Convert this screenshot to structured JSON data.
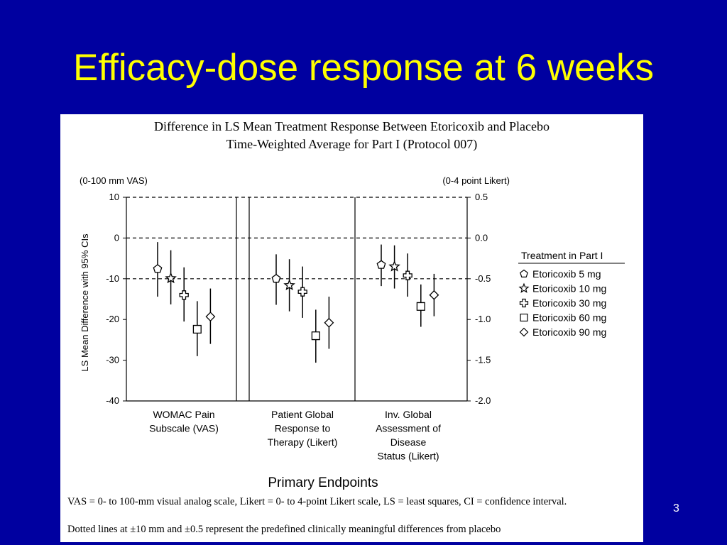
{
  "slide": {
    "title": "Efficacy-dose response at 6 weeks",
    "page_number": "3",
    "background": "#0000a0",
    "title_color": "#ffff00"
  },
  "figure": {
    "heading_line1": "Difference in LS Mean Treatment Response Between Etoricoxib and Placebo",
    "heading_line2": "Time-Weighted Average for Part I (Protocol 007)",
    "footnote1": "VAS = 0- to 100-mm visual analog scale, Likert = 0- to 4-point Likert scale, LS = least squares, CI = confidence interval.",
    "footnote2": "Dotted lines at ±10 mm and ±0.5 represent the predefined clinically meaningful differences from placebo"
  },
  "chart_data": {
    "type": "scatter",
    "ylabel": "LS Mean Difference with 95% CIs",
    "xlabel": "Primary Endpoints",
    "left_axis": {
      "label": "(0-100 mm VAS)",
      "ticks": [
        "10",
        "0",
        "-10",
        "-20",
        "-30",
        "-40"
      ],
      "range": [
        -40,
        10
      ]
    },
    "right_axis": {
      "label": "(0-4 point Likert)",
      "ticks": [
        "0.5",
        "0.0",
        "-0.5",
        "-1.0",
        "-1.5",
        "-2.0"
      ],
      "range": [
        -2.0,
        0.5
      ]
    },
    "reference_lines": [
      10,
      0,
      -10
    ],
    "legend": {
      "title": "Treatment in Part I",
      "position": "right",
      "items": [
        {
          "name": "Etoricoxib 5 mg",
          "marker": "pentagon"
        },
        {
          "name": "Etoricoxib 10 mg",
          "marker": "star"
        },
        {
          "name": "Etoricoxib 30 mg",
          "marker": "cross"
        },
        {
          "name": "Etoricoxib 60 mg",
          "marker": "square"
        },
        {
          "name": "Etoricoxib 90 mg",
          "marker": "diamond"
        }
      ]
    },
    "groups": [
      {
        "label": [
          "WOMAC Pain",
          "Subscale (VAS)"
        ],
        "scale": "VAS",
        "points": [
          {
            "dose": "Etoricoxib 5 mg",
            "mean": -7.6,
            "lower": -14.4,
            "upper": -1.0
          },
          {
            "dose": "Etoricoxib 10 mg",
            "mean": -9.9,
            "lower": -16.3,
            "upper": -3.0
          },
          {
            "dose": "Etoricoxib 30 mg",
            "mean": -14.0,
            "lower": -20.5,
            "upper": -7.2
          },
          {
            "dose": "Etoricoxib 60 mg",
            "mean": -22.4,
            "lower": -29.0,
            "upper": -15.5
          },
          {
            "dose": "Etoricoxib 90 mg",
            "mean": -19.3,
            "lower": -26.0,
            "upper": -12.4
          }
        ]
      },
      {
        "label": [
          "Patient Global",
          "Response to",
          "Therapy (Likert)"
        ],
        "scale": "Likert",
        "points": [
          {
            "dose": "Etoricoxib 5 mg",
            "mean": -0.5,
            "lower": -0.82,
            "upper": -0.2
          },
          {
            "dose": "Etoricoxib 10 mg",
            "mean": -0.58,
            "lower": -0.9,
            "upper": -0.26
          },
          {
            "dose": "Etoricoxib 30 mg",
            "mean": -0.66,
            "lower": -0.98,
            "upper": -0.35
          },
          {
            "dose": "Etoricoxib 60 mg",
            "mean": -1.2,
            "lower": -1.53,
            "upper": -0.88
          },
          {
            "dose": "Etoricoxib 90 mg",
            "mean": -1.04,
            "lower": -1.36,
            "upper": -0.72
          }
        ]
      },
      {
        "label": [
          "Inv. Global",
          "Assessment of",
          "Disease",
          "Status (Likert)"
        ],
        "scale": "Likert",
        "points": [
          {
            "dose": "Etoricoxib 5 mg",
            "mean": -0.33,
            "lower": -0.59,
            "upper": -0.08
          },
          {
            "dose": "Etoricoxib 10 mg",
            "mean": -0.35,
            "lower": -0.62,
            "upper": -0.09
          },
          {
            "dose": "Etoricoxib 30 mg",
            "mean": -0.46,
            "lower": -0.72,
            "upper": -0.19
          },
          {
            "dose": "Etoricoxib 60 mg",
            "mean": -0.84,
            "lower": -1.09,
            "upper": -0.57
          },
          {
            "dose": "Etoricoxib 90 mg",
            "mean": -0.7,
            "lower": -0.96,
            "upper": -0.44
          }
        ]
      }
    ]
  }
}
